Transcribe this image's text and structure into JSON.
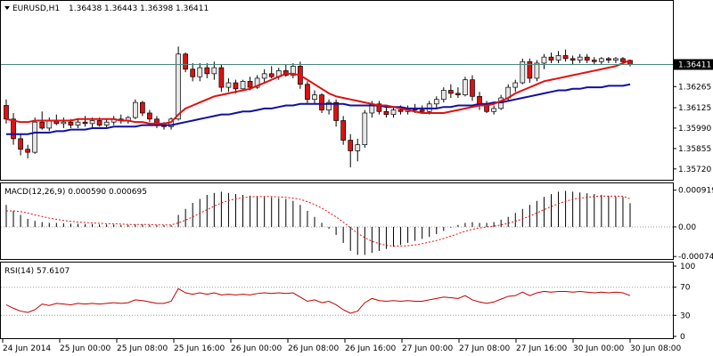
{
  "header": {
    "symbol": "EURUSD,H1",
    "ohlc": [
      "1.36438",
      "1.36443",
      "1.36398",
      "1.36411"
    ],
    "current_price": "1.36411"
  },
  "colors": {
    "bull": "#e8e8e8",
    "bear": "#e01010",
    "ma_fast": "#e01010",
    "ma_slow": "#1010a0",
    "macd_hist": "#000000",
    "macd_signal": "#e01010",
    "rsi": "#c00000",
    "current_line": "#4a8a7a"
  },
  "chart_data": [
    {
      "type": "candlestick",
      "ylim": [
        1.3566,
        1.3672
      ],
      "y_ticks": [
        "1.36265",
        "1.36125",
        "1.35990",
        "1.35855",
        "1.35720"
      ],
      "x_ticks": [
        "24 Jun 2014",
        "25 Jun 00:00",
        "25 Jun 08:00",
        "25 Jun 16:00",
        "26 Jun 00:00",
        "26 Jun 08:00",
        "26 Jun 16:00",
        "27 Jun 00:00",
        "27 Jun 08:00",
        "27 Jun 16:00",
        "30 Jun 00:00",
        "30 Jun 08:00"
      ],
      "candles": [
        {
          "o": 1.3614,
          "h": 1.3618,
          "l": 1.3602,
          "c": 1.3605
        },
        {
          "o": 1.3605,
          "h": 1.3609,
          "l": 1.3588,
          "c": 1.3592
        },
        {
          "o": 1.3592,
          "h": 1.3595,
          "l": 1.3581,
          "c": 1.3585
        },
        {
          "o": 1.3585,
          "h": 1.3588,
          "l": 1.3579,
          "c": 1.3583
        },
        {
          "o": 1.3583,
          "h": 1.3606,
          "l": 1.3582,
          "c": 1.3603
        },
        {
          "o": 1.3603,
          "h": 1.361,
          "l": 1.3598,
          "c": 1.3599
        },
        {
          "o": 1.3599,
          "h": 1.3606,
          "l": 1.3597,
          "c": 1.3604
        },
        {
          "o": 1.3604,
          "h": 1.3608,
          "l": 1.3601,
          "c": 1.3602
        },
        {
          "o": 1.3602,
          "h": 1.3606,
          "l": 1.3599,
          "c": 1.3603
        },
        {
          "o": 1.3603,
          "h": 1.3605,
          "l": 1.3599,
          "c": 1.3601
        },
        {
          "o": 1.3601,
          "h": 1.3605,
          "l": 1.3599,
          "c": 1.3603
        },
        {
          "o": 1.3603,
          "h": 1.3607,
          "l": 1.36,
          "c": 1.3602
        },
        {
          "o": 1.3602,
          "h": 1.3606,
          "l": 1.3599,
          "c": 1.3604
        },
        {
          "o": 1.3604,
          "h": 1.3606,
          "l": 1.36,
          "c": 1.3601
        },
        {
          "o": 1.3601,
          "h": 1.3605,
          "l": 1.3599,
          "c": 1.3603
        },
        {
          "o": 1.3603,
          "h": 1.3607,
          "l": 1.3601,
          "c": 1.3605
        },
        {
          "o": 1.3605,
          "h": 1.3608,
          "l": 1.3602,
          "c": 1.3604
        },
        {
          "o": 1.3604,
          "h": 1.3607,
          "l": 1.3602,
          "c": 1.3606
        },
        {
          "o": 1.3606,
          "h": 1.3618,
          "l": 1.3605,
          "c": 1.3616
        },
        {
          "o": 1.3616,
          "h": 1.3617,
          "l": 1.3607,
          "c": 1.3609
        },
        {
          "o": 1.3609,
          "h": 1.3611,
          "l": 1.3603,
          "c": 1.3605
        },
        {
          "o": 1.3605,
          "h": 1.3607,
          "l": 1.3599,
          "c": 1.3601
        },
        {
          "o": 1.3601,
          "h": 1.3603,
          "l": 1.3598,
          "c": 1.36
        },
        {
          "o": 1.36,
          "h": 1.3606,
          "l": 1.3598,
          "c": 1.3605
        },
        {
          "o": 1.3605,
          "h": 1.3653,
          "l": 1.3604,
          "c": 1.3648
        },
        {
          "o": 1.3648,
          "h": 1.3649,
          "l": 1.3636,
          "c": 1.3638
        },
        {
          "o": 1.3638,
          "h": 1.3642,
          "l": 1.363,
          "c": 1.3633
        },
        {
          "o": 1.3633,
          "h": 1.3642,
          "l": 1.363,
          "c": 1.3639
        },
        {
          "o": 1.3639,
          "h": 1.3642,
          "l": 1.3632,
          "c": 1.3635
        },
        {
          "o": 1.3635,
          "h": 1.3643,
          "l": 1.3631,
          "c": 1.3639
        },
        {
          "o": 1.3639,
          "h": 1.3641,
          "l": 1.3623,
          "c": 1.3626
        },
        {
          "o": 1.3626,
          "h": 1.3632,
          "l": 1.3623,
          "c": 1.3629
        },
        {
          "o": 1.3629,
          "h": 1.3631,
          "l": 1.3622,
          "c": 1.3625
        },
        {
          "o": 1.3625,
          "h": 1.3631,
          "l": 1.3624,
          "c": 1.363
        },
        {
          "o": 1.363,
          "h": 1.3633,
          "l": 1.3624,
          "c": 1.3626
        },
        {
          "o": 1.3626,
          "h": 1.3634,
          "l": 1.3625,
          "c": 1.3632
        },
        {
          "o": 1.3632,
          "h": 1.3638,
          "l": 1.3629,
          "c": 1.3635
        },
        {
          "o": 1.3635,
          "h": 1.364,
          "l": 1.3632,
          "c": 1.3633
        },
        {
          "o": 1.3633,
          "h": 1.3639,
          "l": 1.3631,
          "c": 1.3637
        },
        {
          "o": 1.3637,
          "h": 1.3641,
          "l": 1.3633,
          "c": 1.3634
        },
        {
          "o": 1.3634,
          "h": 1.3642,
          "l": 1.3632,
          "c": 1.364
        },
        {
          "o": 1.364,
          "h": 1.3643,
          "l": 1.3625,
          "c": 1.3628
        },
        {
          "o": 1.3628,
          "h": 1.363,
          "l": 1.3615,
          "c": 1.3618
        },
        {
          "o": 1.3618,
          "h": 1.3624,
          "l": 1.3615,
          "c": 1.3621
        },
        {
          "o": 1.3621,
          "h": 1.3622,
          "l": 1.3609,
          "c": 1.3611
        },
        {
          "o": 1.3611,
          "h": 1.3618,
          "l": 1.3608,
          "c": 1.3616
        },
        {
          "o": 1.3616,
          "h": 1.3618,
          "l": 1.36,
          "c": 1.3604
        },
        {
          "o": 1.3604,
          "h": 1.3607,
          "l": 1.3588,
          "c": 1.3591
        },
        {
          "o": 1.3591,
          "h": 1.3595,
          "l": 1.3573,
          "c": 1.3584
        },
        {
          "o": 1.3584,
          "h": 1.3592,
          "l": 1.3577,
          "c": 1.3588
        },
        {
          "o": 1.3588,
          "h": 1.3611,
          "l": 1.3586,
          "c": 1.3609
        },
        {
          "o": 1.3609,
          "h": 1.3617,
          "l": 1.3606,
          "c": 1.3615
        },
        {
          "o": 1.3615,
          "h": 1.3617,
          "l": 1.3608,
          "c": 1.361
        },
        {
          "o": 1.361,
          "h": 1.3614,
          "l": 1.3606,
          "c": 1.3608
        },
        {
          "o": 1.3608,
          "h": 1.3613,
          "l": 1.3606,
          "c": 1.3611
        },
        {
          "o": 1.3611,
          "h": 1.3614,
          "l": 1.3608,
          "c": 1.361
        },
        {
          "o": 1.361,
          "h": 1.3614,
          "l": 1.3608,
          "c": 1.3612
        },
        {
          "o": 1.3612,
          "h": 1.3615,
          "l": 1.3609,
          "c": 1.3611
        },
        {
          "o": 1.3611,
          "h": 1.3614,
          "l": 1.3609,
          "c": 1.361
        },
        {
          "o": 1.361,
          "h": 1.3617,
          "l": 1.3608,
          "c": 1.3615
        },
        {
          "o": 1.3615,
          "h": 1.362,
          "l": 1.3612,
          "c": 1.3618
        },
        {
          "o": 1.3618,
          "h": 1.3626,
          "l": 1.3616,
          "c": 1.3624
        },
        {
          "o": 1.3624,
          "h": 1.3628,
          "l": 1.3619,
          "c": 1.3622
        },
        {
          "o": 1.3622,
          "h": 1.3626,
          "l": 1.3619,
          "c": 1.3621
        },
        {
          "o": 1.3621,
          "h": 1.3633,
          "l": 1.362,
          "c": 1.3631
        },
        {
          "o": 1.3631,
          "h": 1.3634,
          "l": 1.3617,
          "c": 1.362
        },
        {
          "o": 1.362,
          "h": 1.3623,
          "l": 1.3611,
          "c": 1.3614
        },
        {
          "o": 1.3614,
          "h": 1.3617,
          "l": 1.3609,
          "c": 1.361
        },
        {
          "o": 1.361,
          "h": 1.3614,
          "l": 1.3608,
          "c": 1.3612
        },
        {
          "o": 1.3612,
          "h": 1.3621,
          "l": 1.3611,
          "c": 1.3619
        },
        {
          "o": 1.3619,
          "h": 1.3628,
          "l": 1.3617,
          "c": 1.3626
        },
        {
          "o": 1.3626,
          "h": 1.3631,
          "l": 1.3623,
          "c": 1.3629
        },
        {
          "o": 1.3629,
          "h": 1.3645,
          "l": 1.3628,
          "c": 1.3643
        },
        {
          "o": 1.3643,
          "h": 1.3645,
          "l": 1.3629,
          "c": 1.3632
        },
        {
          "o": 1.3632,
          "h": 1.3644,
          "l": 1.363,
          "c": 1.3642
        },
        {
          "o": 1.3642,
          "h": 1.3648,
          "l": 1.3638,
          "c": 1.3646
        },
        {
          "o": 1.3646,
          "h": 1.3649,
          "l": 1.3642,
          "c": 1.3644
        },
        {
          "o": 1.3644,
          "h": 1.365,
          "l": 1.3642,
          "c": 1.3647
        },
        {
          "o": 1.3647,
          "h": 1.3651,
          "l": 1.3643,
          "c": 1.3645
        },
        {
          "o": 1.3645,
          "h": 1.3647,
          "l": 1.3641,
          "c": 1.3644
        },
        {
          "o": 1.3644,
          "h": 1.3648,
          "l": 1.3642,
          "c": 1.3646
        },
        {
          "o": 1.3646,
          "h": 1.3648,
          "l": 1.3642,
          "c": 1.3644
        },
        {
          "o": 1.3644,
          "h": 1.3646,
          "l": 1.3641,
          "c": 1.3643
        },
        {
          "o": 1.3643,
          "h": 1.3646,
          "l": 1.3641,
          "c": 1.3645
        },
        {
          "o": 1.3645,
          "h": 1.3646,
          "l": 1.3642,
          "c": 1.3644
        },
        {
          "o": 1.3644,
          "h": 1.3646,
          "l": 1.3642,
          "c": 1.3645
        },
        {
          "o": 1.3645,
          "h": 1.3646,
          "l": 1.3642,
          "c": 1.3643
        },
        {
          "o": 1.36438,
          "h": 1.36443,
          "l": 1.36398,
          "c": 1.36411
        }
      ],
      "ma_fast": [
        1.3605,
        1.3604,
        1.3603,
        1.3603,
        1.3604,
        1.3604,
        1.3604,
        1.3604,
        1.3604,
        1.3604,
        1.3605,
        1.3605,
        1.3605,
        1.3605,
        1.3605,
        1.3605,
        1.3604,
        1.3604,
        1.3603,
        1.3603,
        1.3602,
        1.3602,
        1.3602,
        1.3603,
        1.3608,
        1.3612,
        1.3614,
        1.3616,
        1.3618,
        1.362,
        1.3621,
        1.3622,
        1.3623,
        1.3624,
        1.3625,
        1.3627,
        1.3629,
        1.3631,
        1.3633,
        1.3635,
        1.3635,
        1.3634,
        1.3631,
        1.3628,
        1.3625,
        1.3622,
        1.362,
        1.3619,
        1.3618,
        1.3617,
        1.3616,
        1.3615,
        1.3614,
        1.3614,
        1.3613,
        1.3612,
        1.3611,
        1.361,
        1.3609,
        1.3609,
        1.3609,
        1.3609,
        1.361,
        1.3611,
        1.3612,
        1.3613,
        1.3614,
        1.3614,
        1.3615,
        1.3617,
        1.3619,
        1.3622,
        1.3624,
        1.3626,
        1.3628,
        1.363,
        1.3631,
        1.3632,
        1.3633,
        1.3634,
        1.3635,
        1.3636,
        1.3637,
        1.3638,
        1.3639,
        1.364,
        1.3642,
        1.3644
      ],
      "ma_slow": [
        1.3595,
        1.3595,
        1.3595,
        1.3595,
        1.3596,
        1.3596,
        1.3596,
        1.3597,
        1.3597,
        1.3598,
        1.3598,
        1.3598,
        1.3599,
        1.3599,
        1.3599,
        1.36,
        1.36,
        1.36,
        1.36,
        1.3601,
        1.3601,
        1.3601,
        1.3601,
        1.3601,
        1.3602,
        1.3603,
        1.3604,
        1.3605,
        1.3606,
        1.3607,
        1.3608,
        1.3608,
        1.3609,
        1.361,
        1.361,
        1.3611,
        1.3612,
        1.3612,
        1.3613,
        1.3614,
        1.3614,
        1.3615,
        1.3615,
        1.3615,
        1.3615,
        1.3615,
        1.3615,
        1.3615,
        1.3614,
        1.3614,
        1.3614,
        1.3614,
        1.3614,
        1.3613,
        1.3613,
        1.3613,
        1.3612,
        1.3612,
        1.3612,
        1.3612,
        1.3612,
        1.3613,
        1.3613,
        1.3614,
        1.3614,
        1.3614,
        1.3615,
        1.3615,
        1.3616,
        1.3616,
        1.3617,
        1.3618,
        1.3619,
        1.362,
        1.3621,
        1.3622,
        1.3623,
        1.3624,
        1.3624,
        1.3625,
        1.3625,
        1.3626,
        1.3626,
        1.3626,
        1.3627,
        1.3627,
        1.3627,
        1.3628
      ]
    },
    {
      "type": "bar",
      "label": "MACD(12,26,9) 0.000590 0.000695",
      "ylim": [
        -0.00078,
        0.001
      ],
      "y_ticks": [
        "0.000919",
        "0.00",
        "-0.00074"
      ],
      "hist": [
        0.00055,
        0.0004,
        0.0003,
        0.0002,
        0.00015,
        0.00012,
        0.0001,
        0.0001,
        9e-05,
        8e-05,
        8e-05,
        7e-05,
        7e-05,
        6e-05,
        6e-05,
        6e-05,
        5e-05,
        5e-05,
        6e-05,
        6e-05,
        5e-05,
        4e-05,
        4e-05,
        4e-05,
        0.0003,
        0.00045,
        0.0006,
        0.0007,
        0.0008,
        0.00085,
        0.00088,
        0.00085,
        0.00082,
        0.0008,
        0.00078,
        0.00076,
        0.00075,
        0.00074,
        0.00072,
        0.0007,
        0.00065,
        0.00055,
        0.0004,
        0.00025,
        0.0001,
        -5e-05,
        -0.0002,
        -0.0004,
        -0.0006,
        -0.0007,
        -0.0007,
        -0.00065,
        -0.0006,
        -0.00055,
        -0.0005,
        -0.00045,
        -0.0004,
        -0.00035,
        -0.0003,
        -0.00025,
        -0.00018,
        -0.0001,
        -2e-05,
        5e-05,
        0.0001,
        0.00012,
        0.0001,
        0.0001,
        0.00012,
        0.00018,
        0.00025,
        0.00035,
        0.00045,
        0.00055,
        0.00065,
        0.00075,
        0.00082,
        0.00088,
        0.0009,
        0.00088,
        0.00086,
        0.00084,
        0.00082,
        0.0008,
        0.00078,
        0.00076,
        0.00075,
        0.00059
      ],
      "signal": [
        0.0004,
        0.0004,
        0.00038,
        0.00035,
        0.0003,
        0.00026,
        0.00022,
        0.00019,
        0.00016,
        0.00014,
        0.00012,
        0.00011,
        0.0001,
        9e-05,
        8e-05,
        8e-05,
        7e-05,
        6e-05,
        6e-05,
        6e-05,
        6e-05,
        5e-05,
        5e-05,
        5e-05,
        0.0001,
        0.00017,
        0.00025,
        0.00034,
        0.00043,
        0.00052,
        0.0006,
        0.00066,
        0.0007,
        0.00073,
        0.00075,
        0.00076,
        0.00076,
        0.00076,
        0.00075,
        0.00074,
        0.00072,
        0.00069,
        0.00063,
        0.00056,
        0.00047,
        0.00036,
        0.00025,
        0.00012,
        -2e-05,
        -0.00016,
        -0.00027,
        -0.00036,
        -0.00042,
        -0.00046,
        -0.00048,
        -0.00048,
        -0.00047,
        -0.00045,
        -0.00042,
        -0.00038,
        -0.00034,
        -0.00029,
        -0.00023,
        -0.00017,
        -0.00011,
        -6e-05,
        -3e-05,
        0.0,
        2e-05,
        5e-05,
        9e-05,
        0.00014,
        0.0002,
        0.00027,
        0.00035,
        0.00043,
        0.00051,
        0.00058,
        0.00064,
        0.00069,
        0.00072,
        0.00074,
        0.00076,
        0.00077,
        0.00077,
        0.00077,
        0.00077,
        0.0007
      ]
    },
    {
      "type": "line",
      "label": "RSI(14) 57.6107",
      "ylim": [
        0,
        100
      ],
      "y_ticks": [
        "100",
        "70",
        "30",
        "0"
      ],
      "levels": [
        70,
        30
      ],
      "values": [
        45,
        40,
        36,
        34,
        38,
        46,
        44,
        47,
        46,
        45,
        47,
        46,
        47,
        46,
        47,
        48,
        47,
        48,
        52,
        51,
        49,
        47,
        47,
        50,
        68,
        62,
        60,
        62,
        60,
        62,
        59,
        60,
        59,
        60,
        59,
        61,
        62,
        61,
        62,
        61,
        62,
        56,
        50,
        52,
        48,
        50,
        45,
        38,
        33,
        36,
        48,
        54,
        51,
        50,
        51,
        50,
        51,
        50,
        50,
        52,
        54,
        56,
        55,
        54,
        58,
        52,
        49,
        47,
        49,
        53,
        57,
        58,
        63,
        58,
        62,
        64,
        63,
        64,
        64,
        63,
        64,
        63,
        62,
        63,
        62,
        63,
        62,
        58
      ]
    }
  ]
}
